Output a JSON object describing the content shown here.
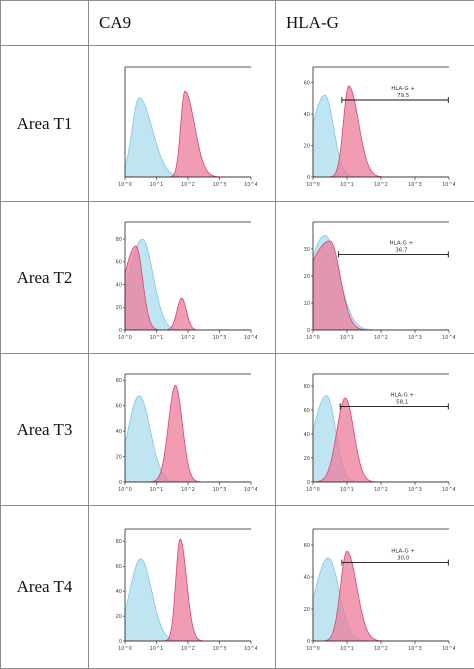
{
  "columns": {
    "ca9": "CA9",
    "hla_g": "HLA-G"
  },
  "rows": [
    {
      "label": "Area T1"
    },
    {
      "label": "Area T2"
    },
    {
      "label": "Area T3"
    },
    {
      "label": "Area T4"
    }
  ],
  "colors": {
    "control_fill": "#a9dcef",
    "control_line": "#7ec8e6",
    "stain_fill": "#ee7b9b",
    "stain_line": "#d8456e",
    "overlap_fill": "#b27fc0",
    "axis": "#222222"
  },
  "chart_data": [
    {
      "type": "area",
      "panel": "CA9 / Area T1",
      "x_scale": "log",
      "xlim": [
        1,
        10000
      ],
      "x_ticks": [
        "10^0",
        "10^1",
        "10^2",
        "10^3",
        "10^4"
      ],
      "y_ticks": [],
      "ylim": [
        0,
        100
      ],
      "series": [
        {
          "role": "control",
          "peak_log10": 0.45,
          "sigma": 0.32,
          "height": 72,
          "skew": -0.3
        },
        {
          "role": "stain",
          "peak_log10": 1.9,
          "sigma": 0.22,
          "height": 78,
          "skew": -0.4
        }
      ]
    },
    {
      "type": "area",
      "panel": "HLA-G / Area T1",
      "x_scale": "log",
      "xlim": [
        1,
        10000
      ],
      "x_ticks": [
        "10^0",
        "10^1",
        "10^2",
        "10^3",
        "10^4"
      ],
      "y_ticks": [
        "0",
        "20",
        "40",
        "60"
      ],
      "ylim": [
        0,
        70
      ],
      "gate": {
        "label": "HLA-G +",
        "value": "79,5",
        "from_log10": 0.85,
        "to_log10": 4.0
      },
      "series": [
        {
          "role": "control",
          "peak_log10": 0.35,
          "sigma": 0.32,
          "height": 52,
          "skew": 0.2
        },
        {
          "role": "stain",
          "peak_log10": 1.05,
          "sigma": 0.22,
          "height": 58,
          "skew": -0.3
        }
      ]
    },
    {
      "type": "area",
      "panel": "CA9 / Area T2",
      "x_scale": "log",
      "xlim": [
        1,
        10000
      ],
      "x_ticks": [
        "10^0",
        "10^1",
        "10^2",
        "10^3",
        "10^4"
      ],
      "y_ticks": [
        "0",
        "20",
        "40",
        "60",
        "80"
      ],
      "ylim": [
        0,
        95
      ],
      "series": [
        {
          "role": "control",
          "peak_log10": 0.55,
          "sigma": 0.38,
          "height": 80,
          "skew": 0.1
        },
        {
          "role": "stain",
          "peak_log10": 0.35,
          "sigma": 0.3,
          "height": 74,
          "skew": 0.3,
          "second_peak_log10": 1.8,
          "second_height": 28
        }
      ]
    },
    {
      "type": "area",
      "panel": "HLA-G / Area T2",
      "x_scale": "log",
      "xlim": [
        1,
        10000
      ],
      "x_ticks": [
        "10^0",
        "10^1",
        "10^2",
        "10^3",
        "10^4"
      ],
      "y_ticks": [
        "0",
        "10",
        "20",
        "30"
      ],
      "ylim": [
        0,
        40
      ],
      "gate": {
        "label": "HLA-G +",
        "value": "36,7",
        "from_log10": 0.75,
        "to_log10": 4.0
      },
      "series": [
        {
          "role": "control",
          "peak_log10": 0.35,
          "sigma": 0.45,
          "height": 35,
          "skew": 0.1
        },
        {
          "role": "stain",
          "peak_log10": 0.5,
          "sigma": 0.5,
          "height": 33,
          "skew": 0.4
        }
      ]
    },
    {
      "type": "area",
      "panel": "CA9 / Area T3",
      "x_scale": "log",
      "xlim": [
        1,
        10000
      ],
      "x_ticks": [
        "10^0",
        "10^1",
        "10^2",
        "10^3",
        "10^4"
      ],
      "y_ticks": [
        "0",
        "20",
        "40",
        "60",
        "80"
      ],
      "ylim": [
        0,
        85
      ],
      "series": [
        {
          "role": "control",
          "peak_log10": 0.45,
          "sigma": 0.35,
          "height": 68,
          "skew": 0.0
        },
        {
          "role": "stain",
          "peak_log10": 1.6,
          "sigma": 0.22,
          "height": 76,
          "skew": 0.0
        }
      ]
    },
    {
      "type": "area",
      "panel": "HLA-G / Area T3",
      "x_scale": "log",
      "xlim": [
        1,
        10000
      ],
      "x_ticks": [
        "10^0",
        "10^1",
        "10^2",
        "10^3",
        "10^4"
      ],
      "y_ticks": [
        "0",
        "20",
        "40",
        "60",
        "80"
      ],
      "ylim": [
        0,
        90
      ],
      "gate": {
        "label": "HLA-G +",
        "value": "58,1",
        "from_log10": 0.8,
        "to_log10": 4.0
      },
      "series": [
        {
          "role": "control",
          "peak_log10": 0.4,
          "sigma": 0.33,
          "height": 72,
          "skew": 0.2
        },
        {
          "role": "stain",
          "peak_log10": 0.95,
          "sigma": 0.25,
          "height": 70,
          "skew": 0.0
        }
      ]
    },
    {
      "type": "area",
      "panel": "CA9 / Area T4",
      "x_scale": "log",
      "xlim": [
        1,
        10000
      ],
      "x_ticks": [
        "10^0",
        "10^1",
        "10^2",
        "10^3",
        "10^4"
      ],
      "y_ticks": [
        "0",
        "20",
        "40",
        "60",
        "80"
      ],
      "ylim": [
        0,
        90
      ],
      "series": [
        {
          "role": "control",
          "peak_log10": 0.5,
          "sigma": 0.35,
          "height": 66,
          "skew": 0.0
        },
        {
          "role": "stain",
          "peak_log10": 1.75,
          "sigma": 0.17,
          "height": 82,
          "skew": -0.2
        }
      ]
    },
    {
      "type": "area",
      "panel": "HLA-G / Area T4",
      "x_scale": "log",
      "xlim": [
        1,
        10000
      ],
      "x_ticks": [
        "10^0",
        "10^1",
        "10^2",
        "10^3",
        "10^4"
      ],
      "y_ticks": [
        "0",
        "20",
        "40",
        "60"
      ],
      "ylim": [
        0,
        70
      ],
      "gate": {
        "label": "HLA-G +",
        "value": "30,0",
        "from_log10": 0.85,
        "to_log10": 4.0
      },
      "series": [
        {
          "role": "control",
          "peak_log10": 0.45,
          "sigma": 0.35,
          "height": 52,
          "skew": 0.1
        },
        {
          "role": "stain",
          "peak_log10": 1.0,
          "sigma": 0.24,
          "height": 56,
          "skew": -0.2
        }
      ]
    }
  ]
}
